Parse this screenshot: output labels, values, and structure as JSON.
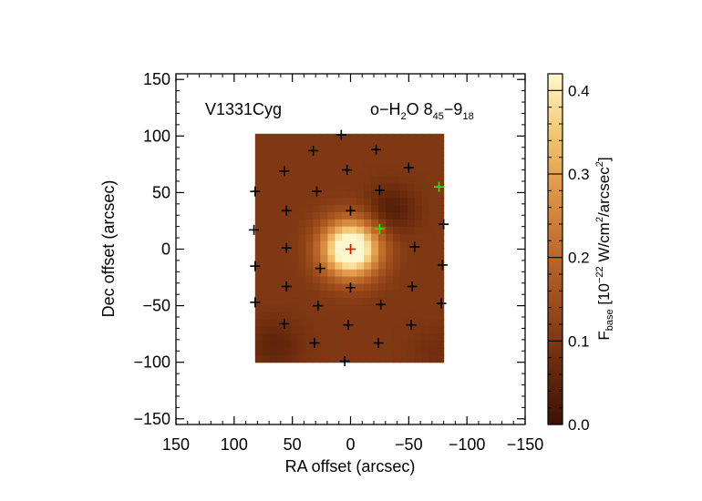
{
  "chart_data": {
    "type": "heatmap",
    "source_label": "V1331Cyg",
    "line_label": {
      "prefix": "o−H",
      "sub1": "2",
      "mid": "O 8",
      "sub2": "45",
      "dash": "−9",
      "sub3": "18"
    },
    "xlabel": "RA offset (arcsec)",
    "ylabel": "Dec offset (arcsec)",
    "xlim": [
      150,
      -150
    ],
    "ylim": [
      -155,
      155
    ],
    "xticks": [
      150,
      100,
      50,
      0,
      -50,
      -100,
      -150
    ],
    "xtick_labels": [
      "150",
      "100",
      "50",
      "0",
      "−50",
      "−100",
      "−150"
    ],
    "yticks": [
      150,
      100,
      50,
      0,
      -50,
      -100,
      -150
    ],
    "ytick_labels": [
      "150",
      "100",
      "50",
      "0",
      "−50",
      "−100",
      "−150"
    ],
    "map_extent": {
      "ra": [
        82,
        -80
      ],
      "dec": [
        -100,
        102
      ]
    },
    "grid": false,
    "colorbar": {
      "label_main": "F",
      "label_sub": "base",
      "label_rest": " [10",
      "label_exp": "−22",
      "label_unit": " W/cm",
      "label_sq": "2",
      "label_slash": "/arcsec",
      "label_sq2": "2",
      "label_close": "]",
      "range": [
        0.0,
        0.42
      ],
      "ticks": [
        0.0,
        0.1,
        0.2,
        0.3,
        0.4
      ],
      "tick_labels": [
        "0.0",
        "0.1",
        "0.2",
        "0.3",
        "0.4"
      ],
      "colormap": [
        "#3b1206",
        "#6a2a0d",
        "#9a4a1a",
        "#c06c2c",
        "#de9647",
        "#f3c873",
        "#fff8cc"
      ]
    },
    "peak": {
      "ra": 0,
      "dec": 0,
      "amplitude": 0.42,
      "sigma": 17
    },
    "background": 0.1,
    "depressions": [
      {
        "ra": -35,
        "dec": 35,
        "amplitude": -0.065,
        "sigma": 14
      },
      {
        "ra": 65,
        "dec": -85,
        "amplitude": -0.045,
        "sigma": 16
      },
      {
        "ra": -75,
        "dec": -90,
        "amplitude": -0.02,
        "sigma": 15
      }
    ],
    "spaxels": [
      {
        "ra": 0,
        "dec": 0,
        "color": "#ff0000"
      },
      {
        "ra": -25,
        "dec": 18,
        "color": "#00ff00"
      },
      {
        "ra": -76,
        "dec": 55,
        "color": "#00ff00"
      },
      {
        "ra": 8,
        "dec": 101,
        "color": "#000000"
      },
      {
        "ra": 32,
        "dec": 87,
        "color": "#000000"
      },
      {
        "ra": -22,
        "dec": 88,
        "color": "#000000"
      },
      {
        "ra": 57,
        "dec": 69,
        "color": "#000000"
      },
      {
        "ra": 3,
        "dec": 70,
        "color": "#000000"
      },
      {
        "ra": -50,
        "dec": 72,
        "color": "#000000"
      },
      {
        "ra": 82,
        "dec": 51,
        "color": "#000000"
      },
      {
        "ra": 29,
        "dec": 51,
        "color": "#000000"
      },
      {
        "ra": -25,
        "dec": 52,
        "color": "#000000"
      },
      {
        "ra": 55,
        "dec": 34,
        "color": "#000000"
      },
      {
        "ra": 0,
        "dec": 34,
        "color": "#000000"
      },
      {
        "ra": -80,
        "dec": 22,
        "color": "#000000"
      },
      {
        "ra": 83,
        "dec": 17,
        "color": "#000000"
      },
      {
        "ra": 55,
        "dec": 1,
        "color": "#000000"
      },
      {
        "ra": -55,
        "dec": 2,
        "color": "#000000"
      },
      {
        "ra": 82,
        "dec": -15,
        "color": "#000000"
      },
      {
        "ra": 26,
        "dec": -17,
        "color": "#000000"
      },
      {
        "ra": -79,
        "dec": -14,
        "color": "#000000"
      },
      {
        "ra": 55,
        "dec": -33,
        "color": "#000000"
      },
      {
        "ra": 0,
        "dec": -34,
        "color": "#000000"
      },
      {
        "ra": -53,
        "dec": -33,
        "color": "#000000"
      },
      {
        "ra": 82,
        "dec": -47,
        "color": "#000000"
      },
      {
        "ra": 28,
        "dec": -50,
        "color": "#000000"
      },
      {
        "ra": -26,
        "dec": -49,
        "color": "#000000"
      },
      {
        "ra": -78,
        "dec": -48,
        "color": "#000000"
      },
      {
        "ra": 57,
        "dec": -66,
        "color": "#000000"
      },
      {
        "ra": 2,
        "dec": -67,
        "color": "#000000"
      },
      {
        "ra": -52,
        "dec": -67,
        "color": "#000000"
      },
      {
        "ra": 31,
        "dec": -83,
        "color": "#000000"
      },
      {
        "ra": -24,
        "dec": -83,
        "color": "#000000"
      },
      {
        "ra": 5,
        "dec": -99,
        "color": "#000000"
      }
    ]
  }
}
